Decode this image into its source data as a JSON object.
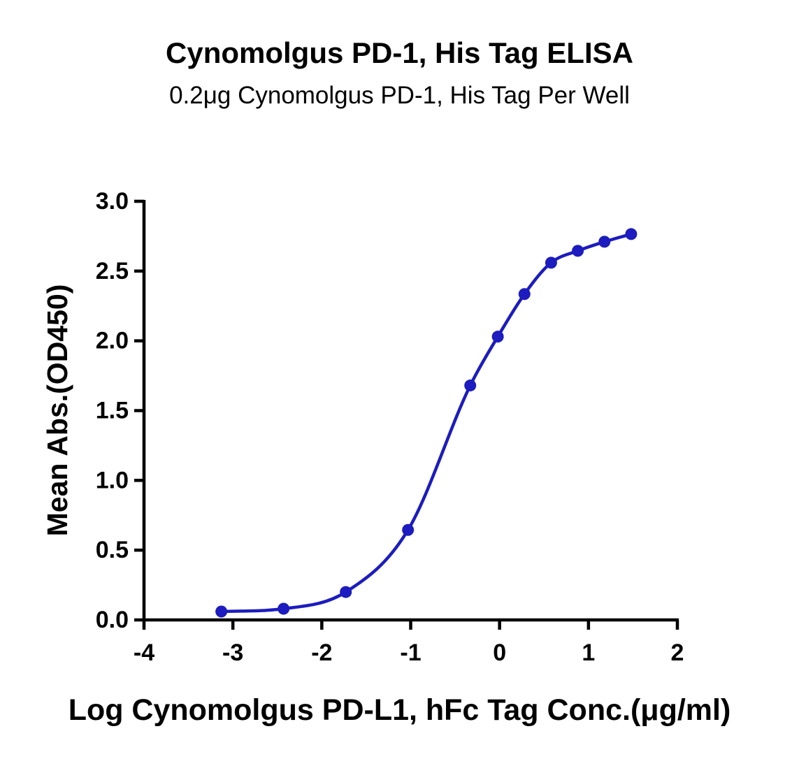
{
  "chart_data": {
    "type": "line",
    "title": "Cynomolgus PD-1, His Tag ELISA",
    "subtitle": "0.2μg Cynomolgus PD-1, His Tag Per Well",
    "xlabel": "Log Cynomolgus PD-L1, hFc Tag Conc.(μg/ml)",
    "ylabel": "Mean Abs.(OD450)",
    "xlim": [
      -4,
      2
    ],
    "ylim": [
      0,
      3
    ],
    "x_ticks": [
      -4,
      -3,
      -2,
      -1,
      0,
      1,
      2
    ],
    "x_tick_labels": [
      "-4",
      "-3",
      "-2",
      "-1",
      "0",
      "1",
      "2"
    ],
    "y_ticks": [
      0,
      0.5,
      1,
      1.5,
      2,
      2.5,
      3
    ],
    "y_tick_labels": [
      "0.0",
      "0.5",
      "1.0",
      "1.5",
      "2.0",
      "2.5",
      "3.0"
    ],
    "grid": false,
    "legend": "none",
    "series": [
      {
        "color": "#1c1cbf",
        "marker": "circle",
        "fit": "four-parameter logistic",
        "x": [
          -3.13,
          -2.43,
          -1.73,
          -1.03,
          -0.33,
          -0.02,
          0.28,
          0.58,
          0.88,
          1.18,
          1.48
        ],
        "y": [
          0.06,
          0.08,
          0.2,
          0.645,
          1.68,
          2.03,
          2.335,
          2.56,
          2.645,
          2.71,
          2.765
        ]
      }
    ]
  }
}
